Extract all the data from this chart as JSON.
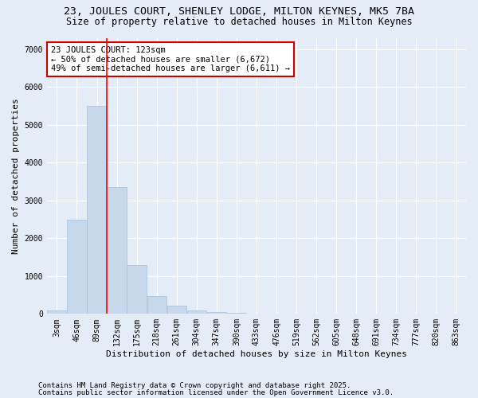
{
  "title1": "23, JOULES COURT, SHENLEY LODGE, MILTON KEYNES, MK5 7BA",
  "title2": "Size of property relative to detached houses in Milton Keynes",
  "xlabel": "Distribution of detached houses by size in Milton Keynes",
  "ylabel": "Number of detached properties",
  "bar_color": "#c8d8ec",
  "bar_edge_color": "#a8c0d8",
  "background_color": "#e4ecf8",
  "categories": [
    "3sqm",
    "46sqm",
    "89sqm",
    "132sqm",
    "175sqm",
    "218sqm",
    "261sqm",
    "304sqm",
    "347sqm",
    "390sqm",
    "433sqm",
    "476sqm",
    "519sqm",
    "562sqm",
    "605sqm",
    "648sqm",
    "691sqm",
    "734sqm",
    "777sqm",
    "820sqm",
    "863sqm"
  ],
  "values": [
    100,
    2500,
    5500,
    3350,
    1300,
    480,
    215,
    100,
    55,
    35,
    0,
    0,
    0,
    0,
    0,
    0,
    0,
    0,
    0,
    0,
    0
  ],
  "ylim": [
    0,
    7300
  ],
  "yticks": [
    0,
    1000,
    2000,
    3000,
    4000,
    5000,
    6000,
    7000
  ],
  "annotation_text_line1": "23 JOULES COURT: 123sqm",
  "annotation_text_line2": "← 50% of detached houses are smaller (6,672)",
  "annotation_text_line3": "49% of semi-detached houses are larger (6,611) →",
  "annotation_box_color": "#ffffff",
  "annotation_box_edge": "#cc0000",
  "red_line_x": 2.5,
  "footnote1": "Contains HM Land Registry data © Crown copyright and database right 2025.",
  "footnote2": "Contains public sector information licensed under the Open Government Licence v3.0.",
  "title_fontsize": 9.5,
  "subtitle_fontsize": 8.5,
  "annotation_fontsize": 7.5,
  "axis_label_fontsize": 8,
  "tick_fontsize": 7,
  "footnote_fontsize": 6.5
}
